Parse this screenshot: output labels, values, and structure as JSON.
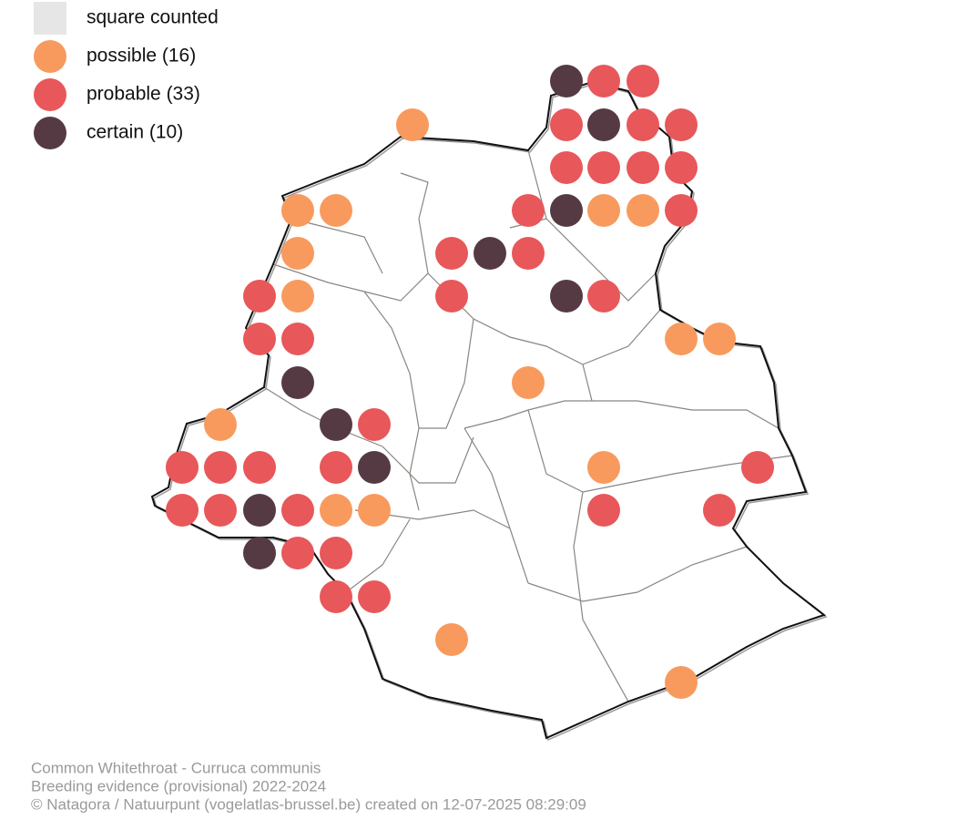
{
  "legend": {
    "items": [
      "square counted",
      "possible (16)",
      "probable (33)",
      "certain (10)"
    ]
  },
  "footer": {
    "lines": [
      "Common Whitethroat - Curruca communis",
      "Breeding evidence (provisional) 2022-2024",
      "© Natagora / Natuurpunt (vogelatlas-brussel.be) created on 12-07-2025 08:29:09"
    ]
  }
}
